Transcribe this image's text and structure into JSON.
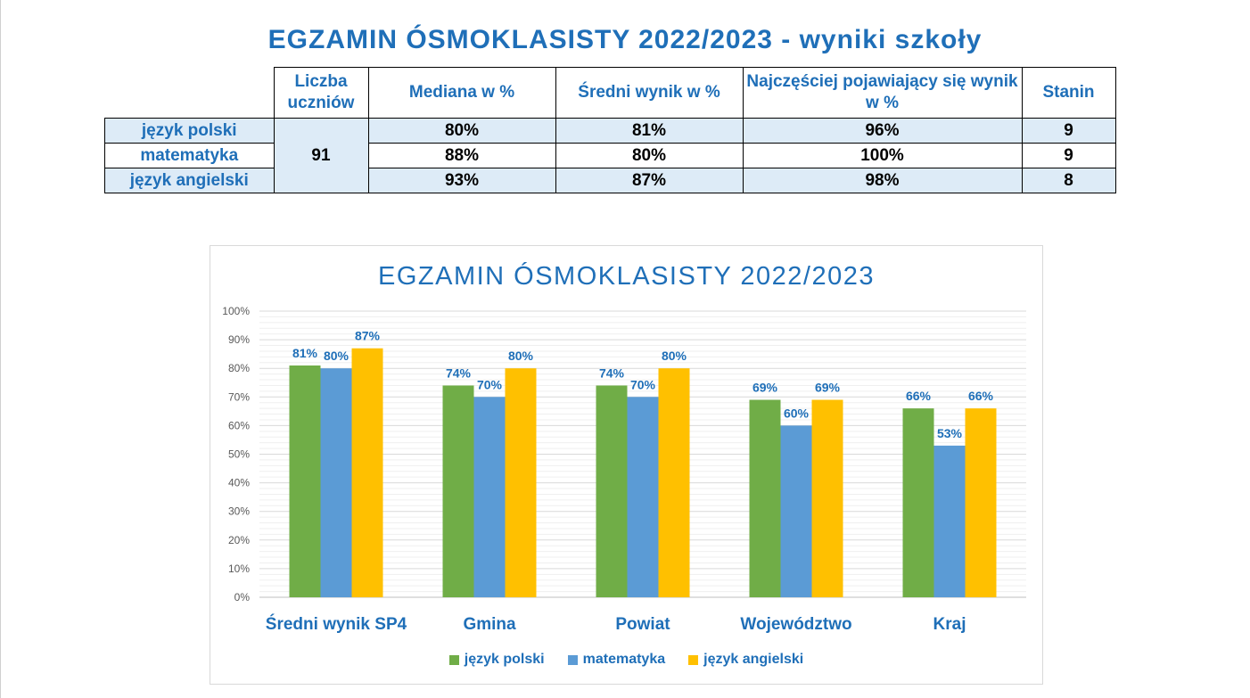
{
  "page_title": "EGZAMIN ÓSMOKLASISTY 2022/2023 - wyniki szkoły",
  "table": {
    "headers": [
      "Liczba uczniów",
      "Mediana w %",
      "Średni wynik w %",
      "Najczęściej pojawiający się wynik w %",
      "Stanin"
    ],
    "student_count": "91",
    "rows": [
      {
        "subject": "język polski",
        "median": "80%",
        "mean": "81%",
        "mode": "96%",
        "stanine": "9"
      },
      {
        "subject": "matematyka",
        "median": "88%",
        "mean": "80%",
        "mode": "100%",
        "stanine": "9"
      },
      {
        "subject": "język angielski",
        "median": "93%",
        "mean": "87%",
        "mode": "98%",
        "stanine": "8"
      }
    ]
  },
  "chart_data": {
    "type": "bar",
    "title": "EGZAMIN ÓSMOKLASISTY 2022/2023",
    "categories": [
      "Średni wynik SP4",
      "Gmina",
      "Powiat",
      "Województwo",
      "Kraj"
    ],
    "series": [
      {
        "name": "język polski",
        "color": "#70ad47",
        "values": [
          81,
          74,
          74,
          69,
          66
        ]
      },
      {
        "name": "matematyka",
        "color": "#5b9bd5",
        "values": [
          80,
          70,
          70,
          60,
          53
        ]
      },
      {
        "name": "język angielski",
        "color": "#ffc000",
        "values": [
          87,
          80,
          80,
          69,
          66
        ]
      }
    ],
    "y_ticks": [
      "0%",
      "10%",
      "20%",
      "30%",
      "40%",
      "50%",
      "60%",
      "70%",
      "80%",
      "90%",
      "100%"
    ],
    "ylim": [
      0,
      100
    ],
    "value_suffix": "%",
    "grid": true,
    "legend_position": "bottom"
  }
}
